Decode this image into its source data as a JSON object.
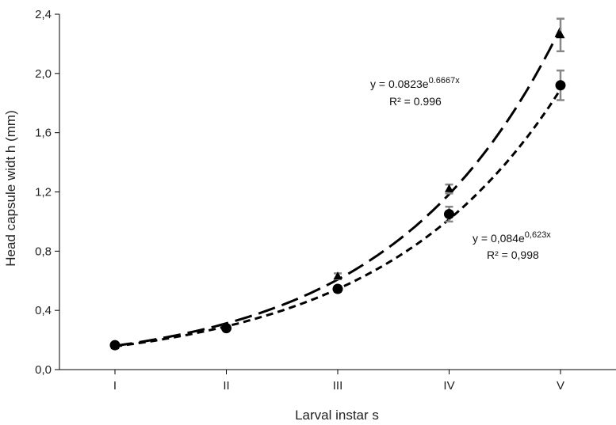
{
  "chart_data": {
    "type": "scatter",
    "xlabel": "Larval instar s",
    "ylabel": "Head capsule widt h (mm)",
    "categories": [
      "I",
      "II",
      "III",
      "IV",
      "V"
    ],
    "ylim": [
      0,
      2.4
    ],
    "yticks": [
      "0,0",
      "0,4",
      "0,8",
      "1,2",
      "1,6",
      "2,0",
      "2,4"
    ],
    "grid": false,
    "series": [
      {
        "marker": "triangle",
        "values": [
          0.16,
          0.29,
          0.63,
          1.22,
          2.26
        ],
        "errors": [
          0.0,
          0.01,
          0.02,
          0.03,
          0.11
        ],
        "trend": {
          "a": 0.0823,
          "b": 0.6667,
          "style": "long-dash"
        }
      },
      {
        "marker": "circle",
        "values": [
          0.165,
          0.28,
          0.545,
          1.05,
          1.92
        ],
        "errors": [
          0.0,
          0.01,
          0.02,
          0.05,
          0.1
        ],
        "trend": {
          "a": 0.084,
          "b": 0.623,
          "style": "short-dash"
        }
      }
    ],
    "annotations": [
      {
        "text": "y = 0.0823e",
        "sup": "0.6667x",
        "r2": "R² = 0.996"
      },
      {
        "text": "y = 0,084e",
        "sup": "0,623x",
        "r2": "R² = 0,998"
      }
    ]
  }
}
